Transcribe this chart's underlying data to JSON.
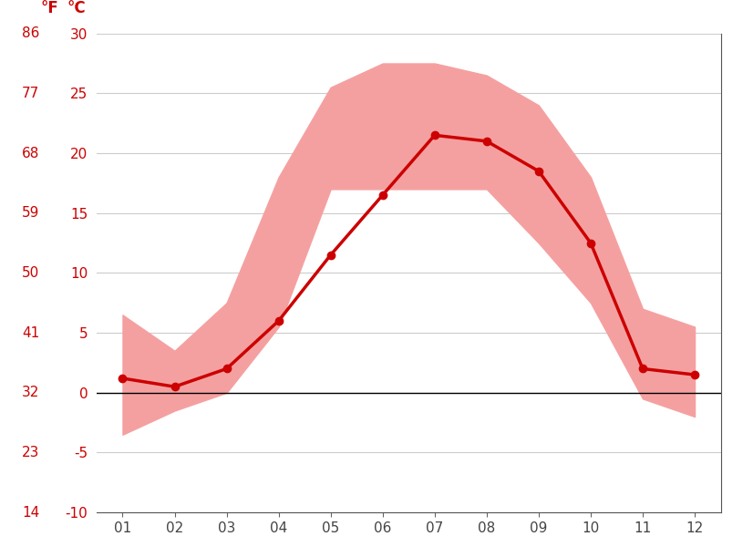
{
  "months": [
    1,
    2,
    3,
    4,
    5,
    6,
    7,
    8,
    9,
    10,
    11,
    12
  ],
  "month_labels": [
    "01",
    "02",
    "03",
    "04",
    "05",
    "06",
    "07",
    "08",
    "09",
    "10",
    "11",
    "12"
  ],
  "mean_temp_c": [
    1.2,
    0.5,
    2.0,
    6.0,
    11.5,
    16.5,
    21.5,
    21.0,
    18.5,
    12.5,
    2.0,
    1.5
  ],
  "max_temp_c": [
    6.5,
    3.5,
    7.5,
    18.0,
    25.5,
    27.5,
    27.5,
    26.5,
    24.0,
    18.0,
    7.0,
    5.5
  ],
  "min_temp_c": [
    -3.5,
    -1.5,
    0.0,
    5.5,
    17.0,
    17.0,
    17.0,
    17.0,
    12.5,
    7.5,
    -0.5,
    -2.0
  ],
  "line_color": "#cc0000",
  "band_color": "#f5a0a0",
  "zero_line_color": "#000000",
  "grid_color": "#cccccc",
  "tick_color": "#cc0000",
  "bg_color": "#ffffff",
  "ylim": [
    -10,
    30
  ],
  "yticks_c": [
    -10,
    -5,
    0,
    5,
    10,
    15,
    20,
    25,
    30
  ],
  "yticks_f": [
    14,
    23,
    32,
    41,
    50,
    59,
    68,
    77,
    86
  ],
  "xlim_left": 0.5,
  "xlim_right": 12.5,
  "marker_size": 6,
  "line_width": 2.5
}
